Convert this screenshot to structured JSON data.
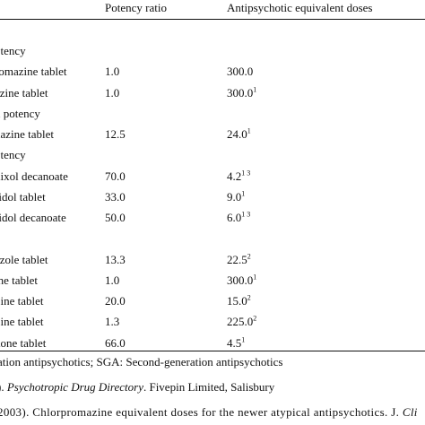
{
  "header": {
    "col_ratio": "Potency ratio",
    "col_dose": "Antipsychotic equivalent doses"
  },
  "rows": [
    {
      "name": "otency",
      "ratio": "",
      "dose": "",
      "sup": ""
    },
    {
      "name": "romazine tablet",
      "ratio": "1.0",
      "dose": "300.0",
      "sup": ""
    },
    {
      "name": "azine tablet",
      "ratio": "1.0",
      "dose": "300.0",
      "sup": "1"
    },
    {
      "name": "n potency",
      "ratio": "",
      "dose": "",
      "sup": ""
    },
    {
      "name": "nazine tablet",
      "ratio": "12.5",
      "dose": "24.0",
      "sup": "1"
    },
    {
      "name": "otency",
      "ratio": "",
      "dose": "",
      "sup": ""
    },
    {
      "name": "hixol decanoate",
      "ratio": "70.0",
      "dose": "4.2",
      "sup": "1 3"
    },
    {
      "name": "ridol tablet",
      "ratio": "33.0",
      "dose": "9.0",
      "sup": "1"
    },
    {
      "name": "ridol decanoate",
      "ratio": "50.0",
      "dose": "6.0",
      "sup": "1 3"
    },
    {
      "name": "",
      "ratio": "",
      "dose": "",
      "sup": ""
    },
    {
      "name": "azole tablet",
      "ratio": "13.3",
      "dose": "22.5",
      "sup": "2"
    },
    {
      "name": "ine tablet",
      "ratio": "1.0",
      "dose": "300.0",
      "sup": "1"
    },
    {
      "name": "pine tablet",
      "ratio": "20.0",
      "dose": "15.0",
      "sup": "2"
    },
    {
      "name": "bine tablet",
      "ratio": "1.3",
      "dose": "225.0",
      "sup": "2"
    },
    {
      "name": "done tablet",
      "ratio": "66.0",
      "dose": "4.5",
      "sup": "1"
    }
  ],
  "footnotes": {
    "abbrev": "ation antipsychotics; SGA: Second-generation antipsychotics",
    "ref1_prefix": "). ",
    "ref1_italic": "Psychotropic Drug Directory",
    "ref1_suffix": ". Fivepin Limited, Salisbury",
    "ref2_text": "2003). Chlorpromazine equivalent doses for the newer atypical antipsychotics. J. ",
    "ref2_italic": "Cli"
  }
}
